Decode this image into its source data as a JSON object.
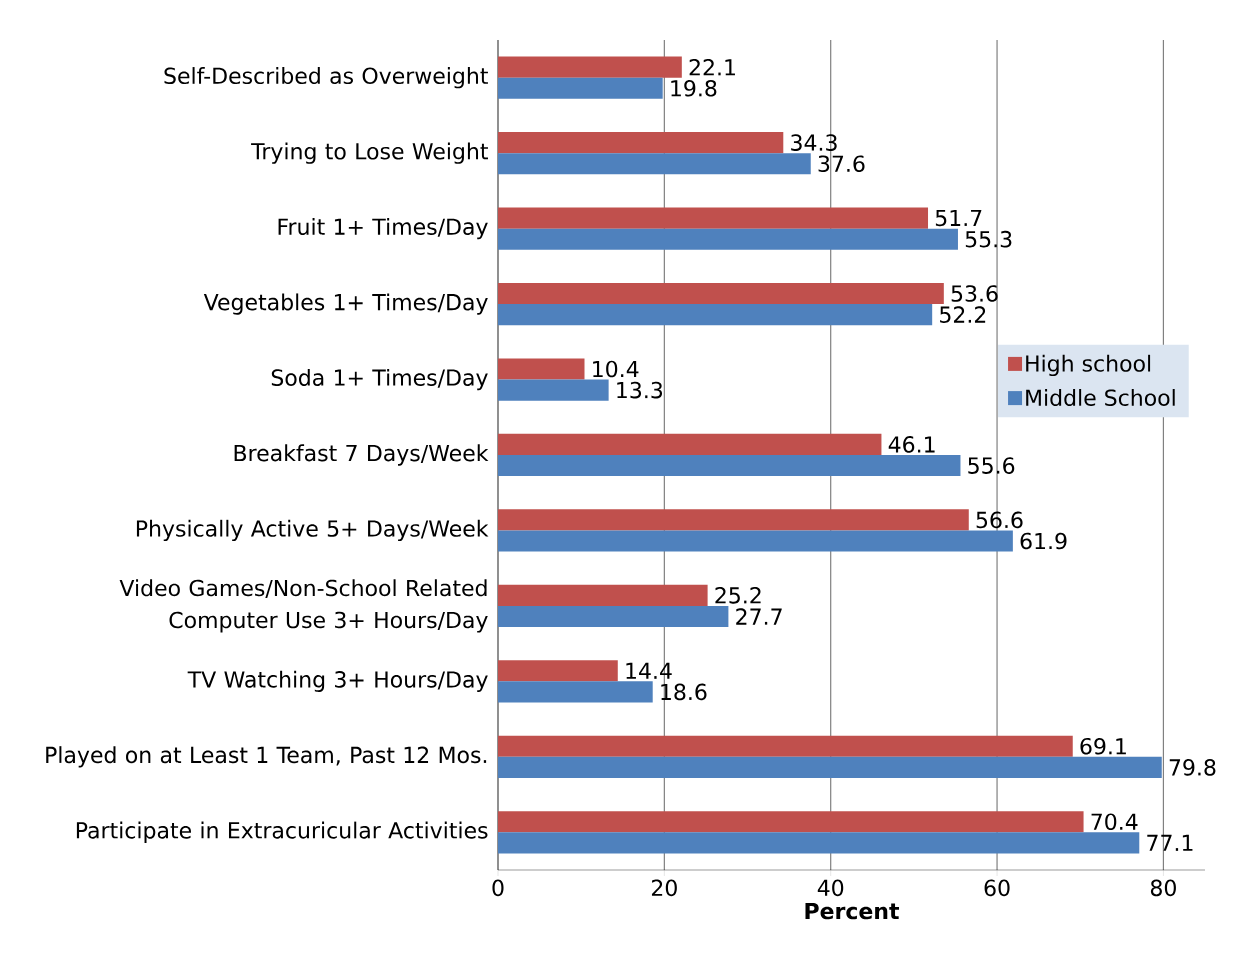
{
  "chart_data": {
    "type": "bar",
    "orientation": "horizontal",
    "xlabel": "Percent",
    "categories": [
      "Self-Described as Overweight",
      "Trying to Lose Weight",
      "Fruit 1+ Times/Day",
      "Vegetables 1+ Times/Day",
      "Soda 1+ Times/Day",
      "Breakfast 7 Days/Week",
      "Physically Active 5+ Days/Week",
      "Video Games/Non-School Related Computer Use 3+ Hours/Day",
      "TV Watching 3+ Hours/Day",
      "Played on at Least 1 Team, Past 12 Mos.",
      "Participate in Extracuricular Activities"
    ],
    "series": [
      {
        "name": "High school",
        "color": "#c0504d",
        "values": [
          22.1,
          34.3,
          51.7,
          53.6,
          10.4,
          46.1,
          56.6,
          25.2,
          14.4,
          69.1,
          70.4
        ]
      },
      {
        "name": "Middle School",
        "color": "#4f81bd",
        "values": [
          19.8,
          37.6,
          55.3,
          52.2,
          13.3,
          55.6,
          61.9,
          27.7,
          18.6,
          79.8,
          77.1
        ]
      }
    ],
    "xlim": [
      0,
      85
    ],
    "xticks": [
      0,
      20,
      40,
      60,
      80
    ],
    "grid": "x",
    "legend": "right",
    "data_labels": true
  }
}
